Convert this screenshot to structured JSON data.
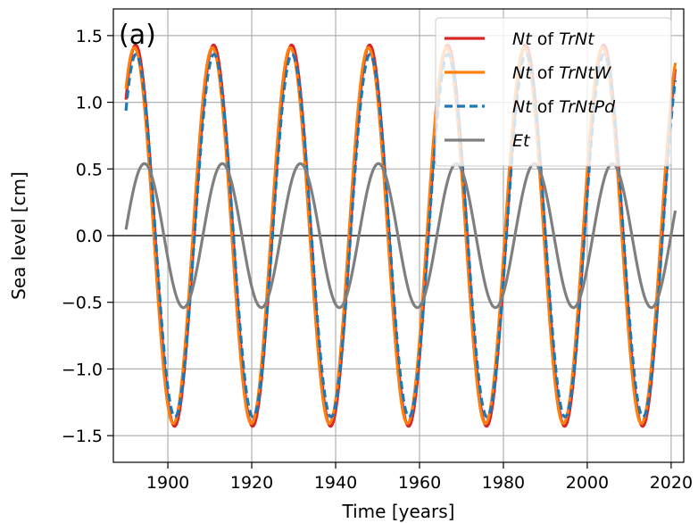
{
  "chart_data": {
    "type": "line",
    "panel_label": "(a)",
    "xlabel": "Time [years]",
    "ylabel": "Sea level [cm]",
    "xlim": [
      1887,
      2023
    ],
    "ylim": [
      -1.7,
      1.7
    ],
    "xticks": [
      1900,
      1920,
      1940,
      1960,
      1980,
      2000,
      2020
    ],
    "yticks": [
      1.5,
      1.0,
      0.5,
      0.0,
      -0.5,
      -1.0,
      -1.5
    ],
    "ytick_labels": [
      "1.5",
      "1.0",
      "0.5",
      "0.0",
      "−0.5",
      "−1.0",
      "−1.5"
    ],
    "grid": true,
    "zero_line": true,
    "legend_position": "top-right",
    "legend": [
      {
        "parts": [
          {
            "text": "Nt",
            "italic": true
          },
          {
            "text": " of ",
            "italic": false
          },
          {
            "text": "TrNt",
            "italic": true
          }
        ]
      },
      {
        "parts": [
          {
            "text": "Nt",
            "italic": true
          },
          {
            "text": " of ",
            "italic": false
          },
          {
            "text": "TrNtW",
            "italic": true
          }
        ]
      },
      {
        "parts": [
          {
            "text": "Nt",
            "italic": true
          },
          {
            "text": " of ",
            "italic": false
          },
          {
            "text": "TrNtPd",
            "italic": true
          }
        ]
      },
      {
        "parts": [
          {
            "text": "Et",
            "italic": true
          }
        ]
      }
    ],
    "series": [
      {
        "color": "#d62728",
        "style": "solid",
        "width": 3.2,
        "x_start": 1890,
        "x_end": 2021,
        "amplitude": 1.43,
        "period": 18.6,
        "peak_year": 1892.3
      },
      {
        "color": "#ff7f0e",
        "style": "solid",
        "width": 3.2,
        "x_start": 1890,
        "x_end": 2021,
        "amplitude": 1.41,
        "period": 18.6,
        "peak_year": 1892.0
      },
      {
        "color": "#1f77b4",
        "style": "dashed",
        "width": 3.2,
        "x_start": 1890,
        "x_end": 2021,
        "amplitude": 1.36,
        "period": 18.6,
        "peak_year": 1892.4
      },
      {
        "color": "#7f7f7f",
        "style": "solid",
        "width": 3.2,
        "x_start": 1890,
        "x_end": 2021,
        "amplitude": 0.54,
        "period": 18.6,
        "peak_year": 1894.4
      }
    ]
  }
}
